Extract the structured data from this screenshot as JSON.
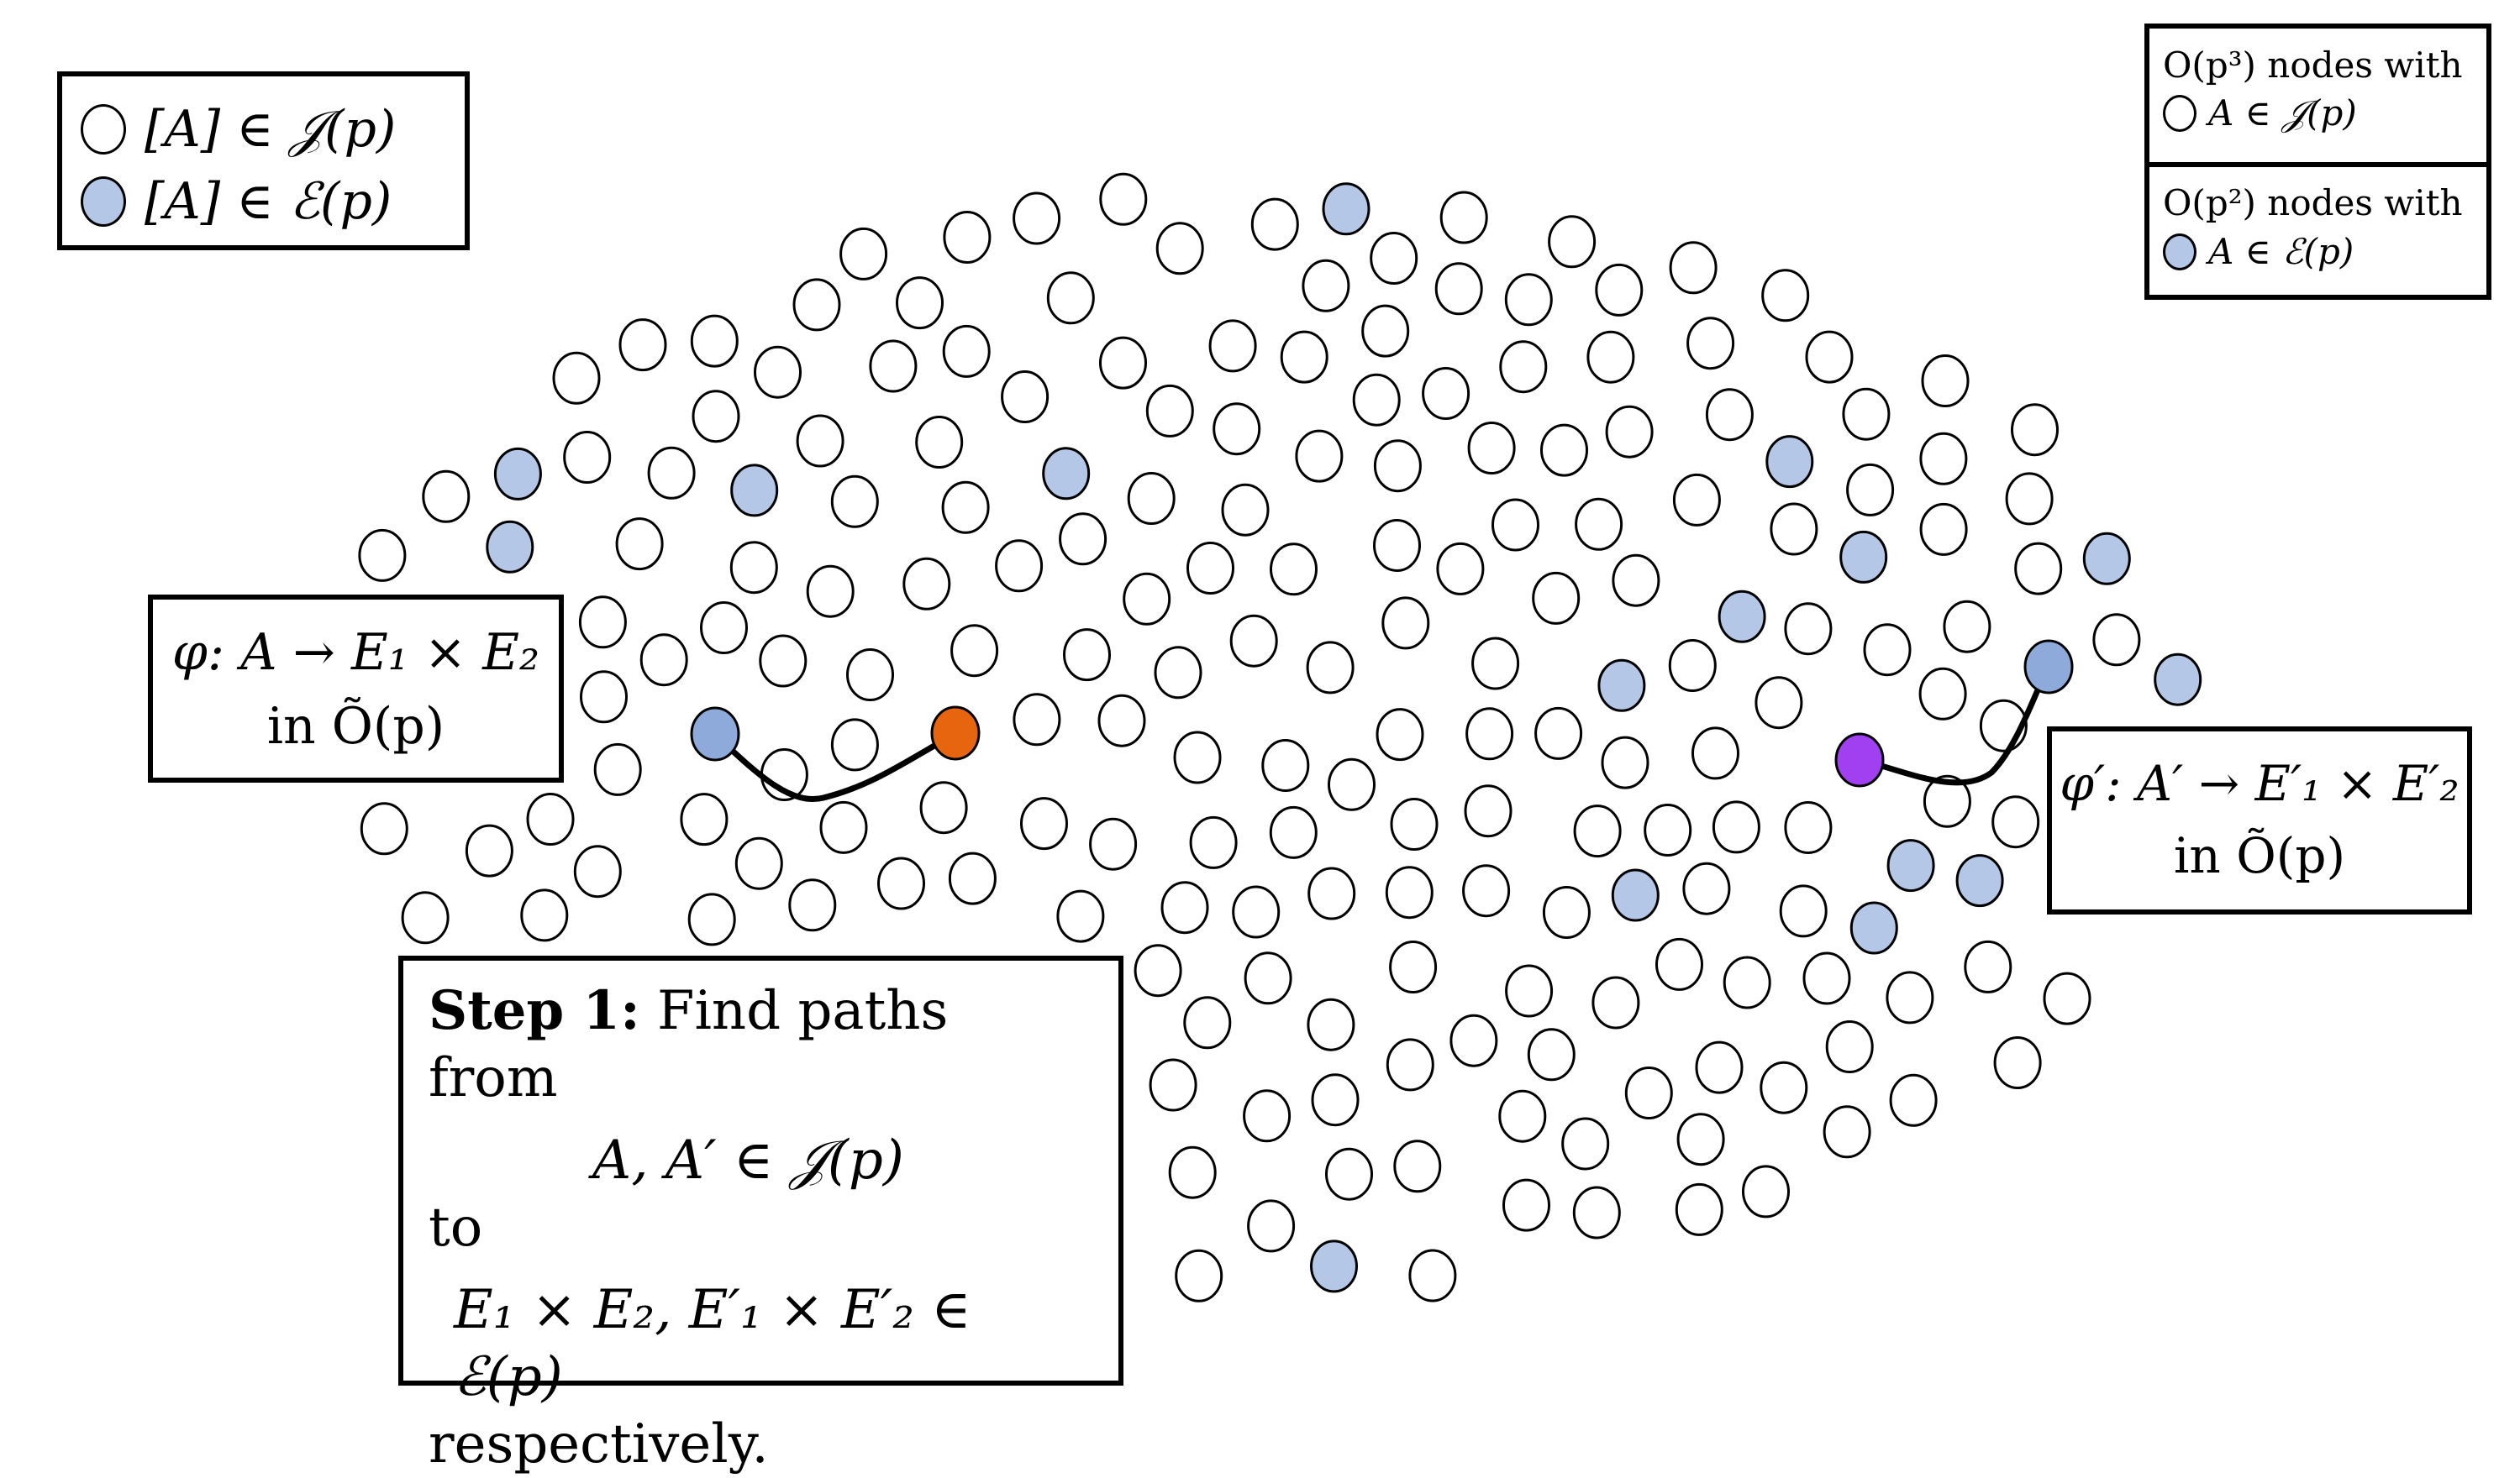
{
  "legend": {
    "items": [
      {
        "fill": "#ffffff",
        "text": "[A] ∈ 𝒥(p)"
      },
      {
        "fill": "#b4c7e7",
        "text": "[A] ∈ ℰ(p)"
      }
    ]
  },
  "counts": {
    "cells": [
      {
        "line1": "O(p³) nodes with",
        "line2": "A ∈ 𝒥(p)",
        "fill": "#ffffff"
      },
      {
        "line1": "O(p²) nodes with",
        "line2": "A ∈ ℰ(p)",
        "fill": "#b4c7e7"
      }
    ]
  },
  "phi_left": {
    "line1": "φ: A → E₁ × E₂",
    "line2": "in Õ(p)"
  },
  "phi_right": {
    "line1": "φ′: A′ → E′₁ × E′₂",
    "line2": "in Õ(p)"
  },
  "step": {
    "title": "Step 1:",
    "rest": " Find paths from",
    "line2": "A, A′ ∈ 𝒥(p)",
    "line3": "to",
    "line4": "E₁ × E₂, E′₁ × E′₂ ∈ ℰ(p)",
    "line5": "respectively."
  },
  "colors": {
    "node_fill": "#ffffff",
    "elliptic_fill": "#b4c7e7",
    "path_start_blue": "#8eaadb",
    "orange": "#e8650f",
    "purple": "#a040f0",
    "stroke": "#000000"
  }
}
